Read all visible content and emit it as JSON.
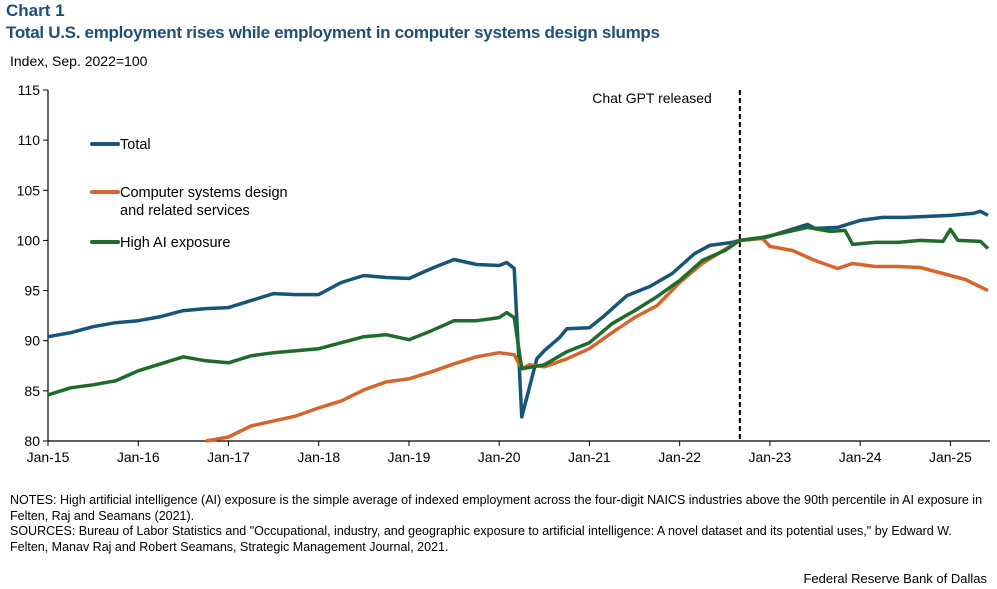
{
  "chart_data": {
    "type": "line",
    "chart_label": "Chart 1",
    "title": "Total U.S. employment rises while employment in computer systems design slumps",
    "ylabel": "Index, Sep. 2022=100",
    "ylim": [
      80,
      115
    ],
    "yticks": [
      80,
      85,
      90,
      95,
      100,
      105,
      110,
      115
    ],
    "xlim": [
      "2015-01",
      "2025-06"
    ],
    "xticks": [
      {
        "date": "2015-01",
        "label": "Jan-15"
      },
      {
        "date": "2016-01",
        "label": "Jan-16"
      },
      {
        "date": "2017-01",
        "label": "Jan-17"
      },
      {
        "date": "2018-01",
        "label": "Jan-18"
      },
      {
        "date": "2019-01",
        "label": "Jan-19"
      },
      {
        "date": "2020-01",
        "label": "Jan-20"
      },
      {
        "date": "2021-01",
        "label": "Jan-21"
      },
      {
        "date": "2022-01",
        "label": "Jan-22"
      },
      {
        "date": "2023-01",
        "label": "Jan-23"
      },
      {
        "date": "2024-01",
        "label": "Jan-24"
      },
      {
        "date": "2025-01",
        "label": "Jan-25"
      }
    ],
    "grid": false,
    "legend_placement": "top-left",
    "annotation": {
      "date": "2022-09",
      "label": "Chat GPT released",
      "style": "dashed vertical line"
    },
    "series": [
      {
        "name": "Total",
        "color": "#15557a",
        "points": [
          [
            "2015-01",
            90.4
          ],
          [
            "2015-04",
            90.8
          ],
          [
            "2015-07",
            91.4
          ],
          [
            "2015-10",
            91.8
          ],
          [
            "2016-01",
            92.0
          ],
          [
            "2016-04",
            92.4
          ],
          [
            "2016-07",
            93.0
          ],
          [
            "2016-10",
            93.2
          ],
          [
            "2017-01",
            93.3
          ],
          [
            "2017-04",
            94.0
          ],
          [
            "2017-07",
            94.7
          ],
          [
            "2017-10",
            94.6
          ],
          [
            "2018-01",
            94.6
          ],
          [
            "2018-04",
            95.8
          ],
          [
            "2018-07",
            96.5
          ],
          [
            "2018-10",
            96.3
          ],
          [
            "2019-01",
            96.2
          ],
          [
            "2019-04",
            97.2
          ],
          [
            "2019-07",
            98.1
          ],
          [
            "2019-10",
            97.6
          ],
          [
            "2020-01",
            97.5
          ],
          [
            "2020-02",
            97.8
          ],
          [
            "2020-03",
            97.2
          ],
          [
            "2020-04",
            82.4
          ],
          [
            "2020-05",
            85.3
          ],
          [
            "2020-06",
            88.2
          ],
          [
            "2020-07",
            89.0
          ],
          [
            "2020-09",
            90.3
          ],
          [
            "2020-10",
            91.2
          ],
          [
            "2021-01",
            91.3
          ],
          [
            "2021-03",
            92.5
          ],
          [
            "2021-06",
            94.5
          ],
          [
            "2021-09",
            95.4
          ],
          [
            "2021-12",
            96.7
          ],
          [
            "2022-03",
            98.7
          ],
          [
            "2022-05",
            99.5
          ],
          [
            "2022-08",
            99.8
          ],
          [
            "2022-09",
            100.0
          ],
          [
            "2022-12",
            100.2
          ],
          [
            "2023-03",
            100.9
          ],
          [
            "2023-06",
            101.6
          ],
          [
            "2023-07",
            101.2
          ],
          [
            "2023-10",
            101.3
          ],
          [
            "2024-01",
            102.0
          ],
          [
            "2024-04",
            102.3
          ],
          [
            "2024-07",
            102.3
          ],
          [
            "2024-10",
            102.4
          ],
          [
            "2025-01",
            102.5
          ],
          [
            "2025-04",
            102.7
          ],
          [
            "2025-05",
            102.9
          ],
          [
            "2025-06",
            102.5
          ]
        ]
      },
      {
        "name": "Computer systems design and related services",
        "name_lines": [
          "Computer systems design",
          "and related services"
        ],
        "color": "#d5652d",
        "points": [
          [
            "2016-10",
            79.8
          ],
          [
            "2017-01",
            80.4
          ],
          [
            "2017-04",
            81.5
          ],
          [
            "2017-07",
            82.0
          ],
          [
            "2017-10",
            82.5
          ],
          [
            "2018-01",
            83.3
          ],
          [
            "2018-04",
            84.0
          ],
          [
            "2018-07",
            85.1
          ],
          [
            "2018-10",
            85.9
          ],
          [
            "2019-01",
            86.2
          ],
          [
            "2019-04",
            86.9
          ],
          [
            "2019-07",
            87.7
          ],
          [
            "2019-10",
            88.4
          ],
          [
            "2020-01",
            88.8
          ],
          [
            "2020-03",
            88.6
          ],
          [
            "2020-04",
            87.2
          ],
          [
            "2020-05",
            87.6
          ],
          [
            "2020-07",
            87.4
          ],
          [
            "2020-10",
            88.2
          ],
          [
            "2021-01",
            89.2
          ],
          [
            "2021-04",
            90.8
          ],
          [
            "2021-07",
            92.3
          ],
          [
            "2021-10",
            93.5
          ],
          [
            "2022-01",
            95.8
          ],
          [
            "2022-04",
            97.7
          ],
          [
            "2022-07",
            99.1
          ],
          [
            "2022-09",
            100.0
          ],
          [
            "2022-12",
            100.2
          ],
          [
            "2023-01",
            99.4
          ],
          [
            "2023-04",
            99.0
          ],
          [
            "2023-07",
            98.0
          ],
          [
            "2023-10",
            97.2
          ],
          [
            "2023-12",
            97.7
          ],
          [
            "2024-03",
            97.4
          ],
          [
            "2024-06",
            97.4
          ],
          [
            "2024-09",
            97.3
          ],
          [
            "2024-12",
            96.7
          ],
          [
            "2025-03",
            96.1
          ],
          [
            "2025-06",
            95.0
          ]
        ]
      },
      {
        "name": "High AI exposure",
        "color": "#1e6b2a",
        "points": [
          [
            "2015-01",
            84.6
          ],
          [
            "2015-04",
            85.3
          ],
          [
            "2015-07",
            85.6
          ],
          [
            "2015-10",
            86.0
          ],
          [
            "2016-01",
            87.0
          ],
          [
            "2016-04",
            87.7
          ],
          [
            "2016-07",
            88.4
          ],
          [
            "2016-10",
            88.0
          ],
          [
            "2017-01",
            87.8
          ],
          [
            "2017-04",
            88.5
          ],
          [
            "2017-07",
            88.8
          ],
          [
            "2017-10",
            89.0
          ],
          [
            "2018-01",
            89.2
          ],
          [
            "2018-04",
            89.8
          ],
          [
            "2018-07",
            90.4
          ],
          [
            "2018-10",
            90.6
          ],
          [
            "2019-01",
            90.1
          ],
          [
            "2019-04",
            91.0
          ],
          [
            "2019-07",
            92.0
          ],
          [
            "2019-10",
            92.0
          ],
          [
            "2020-01",
            92.3
          ],
          [
            "2020-02",
            92.8
          ],
          [
            "2020-03",
            92.3
          ],
          [
            "2020-04",
            87.2
          ],
          [
            "2020-07",
            87.6
          ],
          [
            "2020-10",
            88.9
          ],
          [
            "2021-01",
            89.8
          ],
          [
            "2021-04",
            91.7
          ],
          [
            "2021-07",
            93.0
          ],
          [
            "2021-10",
            94.4
          ],
          [
            "2022-01",
            96.0
          ],
          [
            "2022-04",
            98.0
          ],
          [
            "2022-07",
            99.0
          ],
          [
            "2022-09",
            100.0
          ],
          [
            "2022-12",
            100.3
          ],
          [
            "2023-03",
            100.8
          ],
          [
            "2023-06",
            101.3
          ],
          [
            "2023-09",
            100.9
          ],
          [
            "2023-11",
            101.0
          ],
          [
            "2023-12",
            99.6
          ],
          [
            "2024-03",
            99.8
          ],
          [
            "2024-06",
            99.8
          ],
          [
            "2024-09",
            100.0
          ],
          [
            "2024-12",
            99.9
          ],
          [
            "2025-01",
            101.1
          ],
          [
            "2025-02",
            100.0
          ],
          [
            "2025-05",
            99.9
          ],
          [
            "2025-06",
            99.2
          ]
        ]
      }
    ]
  },
  "notes": "NOTES: High artificial intelligence (AI) exposure is the simple average of indexed employment across the four-digit NAICS industries above the 90th percentile in AI exposure in Felten, Raj and Seamans (2021).",
  "sources": "SOURCES: Bureau of Labor Statistics and \"Occupational, industry, and geographic exposure to artificial intelligence: A novel dataset and its potential uses,\" by Edward W. Felten, Manav Raj and Robert Seamans, Strategic Management Journal, 2021.",
  "credit": "Federal Reserve Bank of Dallas"
}
